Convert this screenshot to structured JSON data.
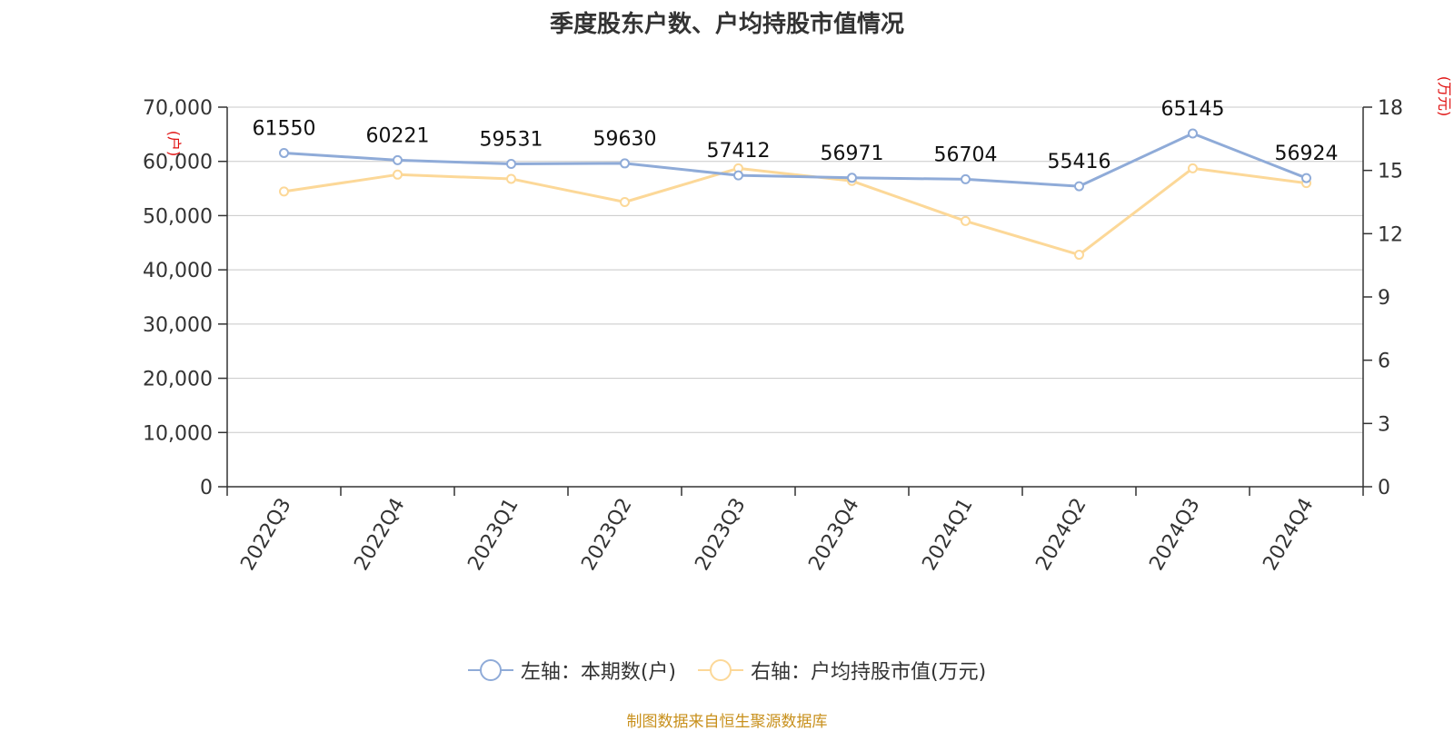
{
  "title": "季度股东户数、户均持股市值情况",
  "source": "制图数据来自恒生聚源数据库",
  "chart_data": {
    "type": "line",
    "title": "季度股东户数、户均持股市值情况",
    "categories": [
      "2022Q3",
      "2022Q4",
      "2023Q1",
      "2023Q2",
      "2023Q3",
      "2023Q4",
      "2024Q1",
      "2024Q2",
      "2024Q3",
      "2024Q4"
    ],
    "left_axis": {
      "unit": "(户)",
      "ylim": [
        0,
        70000
      ],
      "ticks": [
        "0",
        "10,000",
        "20,000",
        "30,000",
        "40,000",
        "50,000",
        "60,000",
        "70,000"
      ]
    },
    "right_axis": {
      "unit": "(万元)",
      "ylim": [
        0,
        18
      ],
      "ticks": [
        "0",
        "3",
        "6",
        "9",
        "12",
        "15",
        "18"
      ]
    },
    "series": [
      {
        "name": "左轴：本期数(户)",
        "axis": "left",
        "color": "#8fabd8",
        "values": [
          61550,
          60221,
          59531,
          59630,
          57412,
          56971,
          56704,
          55416,
          65145,
          56924
        ],
        "labels": [
          "61550",
          "60221",
          "59531",
          "59630",
          "57412",
          "56971",
          "56704",
          "55416",
          "65145",
          "56924"
        ]
      },
      {
        "name": "右轴：户均持股市值(万元)",
        "axis": "right",
        "color": "#fcd898",
        "values": [
          14.0,
          14.8,
          14.6,
          13.5,
          15.1,
          14.5,
          12.6,
          11.0,
          15.1,
          14.4
        ]
      }
    ],
    "grid": true,
    "legend_position": "bottom"
  }
}
